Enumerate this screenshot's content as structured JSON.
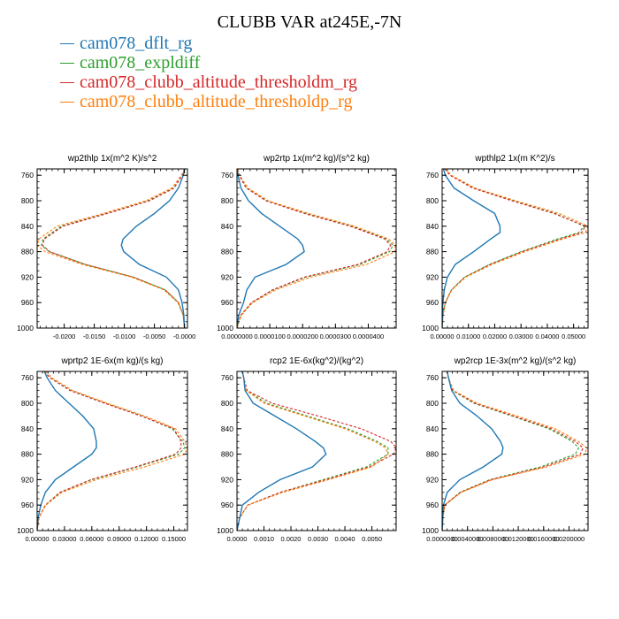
{
  "title": "CLUBB VAR at245E,-7N",
  "legend": [
    {
      "label": "cam078_dflt_rg",
      "color": "#1f77b4"
    },
    {
      "label": "cam078_expldiff",
      "color": "#2ca02c"
    },
    {
      "label": "cam078_clubb_altitude_thresholdm_rg",
      "color": "#d62728"
    },
    {
      "label": "cam078_clubb_altitude_thresholdp_rg",
      "color": "#ff7f0e"
    }
  ],
  "series_colors": [
    "#1f77b4",
    "#2ca02c",
    "#d62728",
    "#ff7f0e"
  ],
  "series_dashed": [
    false,
    true,
    true,
    true
  ],
  "chart_data": [
    {
      "type": "line",
      "title": "wp2thlp  1x(m^2 K)/s^2",
      "y": [
        750,
        760,
        780,
        800,
        820,
        840,
        860,
        870,
        880,
        900,
        920,
        940,
        960,
        980,
        1000
      ],
      "xlim": [
        -0.0245,
        0.0005
      ],
      "ylim": [
        1000,
        750
      ],
      "xticks": [
        -0.02,
        -0.015,
        -0.01,
        -0.005,
        0.0
      ],
      "xticklabels": [
        "-0.0200",
        "-0.0150",
        "-0.0100",
        "-0.0050",
        "-0.0000"
      ],
      "yticks": [
        760,
        800,
        840,
        880,
        920,
        960,
        1000
      ],
      "series": [
        {
          "name": "cam078_dflt_rg",
          "values": [
            0.0,
            -0.0002,
            -0.001,
            -0.0025,
            -0.005,
            -0.008,
            -0.0102,
            -0.0105,
            -0.0101,
            -0.0075,
            -0.003,
            -0.001,
            -0.0004,
            -0.0001,
            0.0
          ]
        },
        {
          "name": "cam078_expldiff",
          "values": [
            0.0,
            -0.0004,
            -0.0018,
            -0.006,
            -0.013,
            -0.0205,
            -0.0235,
            -0.0238,
            -0.0225,
            -0.0165,
            -0.0085,
            -0.0032,
            -0.001,
            -0.0002,
            0.0
          ]
        },
        {
          "name": "cam078_clubb_altitude_thresholdm_rg",
          "values": [
            0.0,
            -0.0004,
            -0.0017,
            -0.0058,
            -0.0128,
            -0.0202,
            -0.0233,
            -0.0236,
            -0.0224,
            -0.0165,
            -0.0085,
            -0.0032,
            -0.001,
            -0.0002,
            0.0
          ]
        },
        {
          "name": "cam078_clubb_altitude_thresholdp_rg",
          "values": [
            0.0,
            -0.0005,
            -0.0021,
            -0.0064,
            -0.0135,
            -0.0212,
            -0.0242,
            -0.0245,
            -0.0232,
            -0.017,
            -0.0088,
            -0.0034,
            -0.0011,
            -0.0002,
            0.0
          ]
        }
      ]
    },
    {
      "type": "line",
      "title": "wp2rtp  1x(m^2 kg)/(s^2 kg)",
      "y": [
        750,
        760,
        780,
        800,
        820,
        840,
        860,
        870,
        880,
        900,
        920,
        940,
        960,
        980,
        1000
      ],
      "xlim": [
        0.0,
        4.85e-05
      ],
      "ylim": [
        1000,
        750
      ],
      "xticks": [
        0.0,
        1e-05,
        2e-05,
        3e-05,
        4e-05
      ],
      "xticklabels": [
        "0.0000000",
        "0.0000100",
        "0.0000200",
        "0.0000300",
        "0.0000400"
      ],
      "yticks": [
        760,
        800,
        840,
        880,
        920,
        960,
        1000
      ],
      "series": [
        {
          "name": "cam078_dflt_rg",
          "values": [
            1e-07,
            3e-07,
            1.2e-06,
            3.5e-06,
            7.5e-06,
            1.3e-05,
            1.85e-05,
            2e-05,
            2.05e-05,
            1.5e-05,
            5.5e-06,
            3e-06,
            2e-06,
            5e-07,
            0.0
          ]
        },
        {
          "name": "cam078_expldiff",
          "values": [
            2e-07,
            6e-07,
            3e-06,
            9e-06,
            2.1e-05,
            3.5e-05,
            4.55e-05,
            4.75e-05,
            4.65e-05,
            3.75e-05,
            2.1e-05,
            1.1e-05,
            4.5e-06,
            1.2e-06,
            0.0
          ]
        },
        {
          "name": "cam078_clubb_altitude_thresholdm_rg",
          "values": [
            2e-07,
            6e-07,
            2.8e-06,
            8.8e-06,
            2.05e-05,
            3.45e-05,
            4.5e-05,
            4.68e-05,
            4.58e-05,
            3.68e-05,
            2.05e-05,
            1.08e-05,
            4.4e-06,
            1.1e-06,
            0.0
          ]
        },
        {
          "name": "cam078_clubb_altitude_thresholdp_rg",
          "values": [
            3e-07,
            8e-07,
            3.3e-06,
            9.5e-06,
            2.18e-05,
            3.58e-05,
            4.62e-05,
            4.82e-05,
            4.82e-05,
            3.95e-05,
            2.25e-05,
            1.18e-05,
            4.8e-06,
            1.3e-06,
            0.0
          ]
        }
      ]
    },
    {
      "type": "line",
      "title": "wpthlp2  1x(m K^2)/s",
      "y": [
        750,
        760,
        780,
        800,
        820,
        840,
        850,
        860,
        880,
        900,
        920,
        940,
        960,
        980,
        1000
      ],
      "xlim": [
        0.0,
        0.0555
      ],
      "ylim": [
        1000,
        750
      ],
      "xticks": [
        0.0,
        0.01,
        0.02,
        0.03,
        0.04,
        0.05
      ],
      "xticklabels": [
        "0.00000",
        "0.01000",
        "0.02000",
        "0.03000",
        "0.04000",
        "0.05000"
      ],
      "yticks": [
        760,
        800,
        840,
        880,
        920,
        960,
        1000
      ],
      "series": [
        {
          "name": "cam078_dflt_rg",
          "values": [
            0.0005,
            0.0012,
            0.0045,
            0.012,
            0.02,
            0.022,
            0.022,
            0.0185,
            0.012,
            0.005,
            0.002,
            0.0008,
            0.0003,
            0.0001,
            0.0
          ]
        },
        {
          "name": "cam078_expldiff",
          "values": [
            0.001,
            0.003,
            0.012,
            0.027,
            0.043,
            0.054,
            0.052,
            0.044,
            0.03,
            0.018,
            0.0085,
            0.0035,
            0.0012,
            0.0003,
            0.0
          ]
        },
        {
          "name": "cam078_clubb_altitude_thresholdm_rg",
          "values": [
            0.001,
            0.003,
            0.0115,
            0.0265,
            0.0425,
            0.0545,
            0.053,
            0.045,
            0.0305,
            0.0183,
            0.0087,
            0.0036,
            0.0012,
            0.0003,
            0.0
          ]
        },
        {
          "name": "cam078_clubb_altitude_thresholdp_rg",
          "values": [
            0.0012,
            0.0035,
            0.0125,
            0.028,
            0.0445,
            0.0555,
            0.0545,
            0.046,
            0.0315,
            0.019,
            0.009,
            0.0037,
            0.0013,
            0.0003,
            0.0
          ]
        }
      ]
    },
    {
      "type": "line",
      "title": "wprtp2  1E-6x(m kg)/(s kg)",
      "y": [
        750,
        760,
        780,
        800,
        820,
        840,
        860,
        870,
        880,
        900,
        920,
        940,
        960,
        980,
        1000
      ],
      "xlim": [
        0.0,
        0.165
      ],
      "ylim": [
        1000,
        750
      ],
      "xticks": [
        0.0,
        0.03,
        0.06,
        0.09,
        0.12,
        0.15
      ],
      "xticklabels": [
        "0.00000",
        "0.03000",
        "0.06000",
        "0.09000",
        "0.12000",
        "0.15000"
      ],
      "yticks": [
        760,
        800,
        840,
        880,
        920,
        960,
        1000
      ],
      "series": [
        {
          "name": "cam078_dflt_rg",
          "values": [
            0.008,
            0.011,
            0.02,
            0.035,
            0.05,
            0.062,
            0.065,
            0.065,
            0.06,
            0.04,
            0.02,
            0.009,
            0.004,
            0.001,
            0.0
          ]
        },
        {
          "name": "cam078_expldiff",
          "values": [
            0.008,
            0.014,
            0.037,
            0.075,
            0.115,
            0.148,
            0.16,
            0.162,
            0.155,
            0.11,
            0.06,
            0.025,
            0.009,
            0.002,
            0.0
          ]
        },
        {
          "name": "cam078_clubb_altitude_thresholdm_rg",
          "values": [
            0.008,
            0.014,
            0.036,
            0.074,
            0.114,
            0.15,
            0.158,
            0.158,
            0.152,
            0.108,
            0.059,
            0.025,
            0.009,
            0.002,
            0.0
          ]
        },
        {
          "name": "cam078_clubb_altitude_thresholdp_rg",
          "values": [
            0.01,
            0.016,
            0.039,
            0.077,
            0.118,
            0.152,
            0.162,
            0.165,
            0.162,
            0.118,
            0.065,
            0.027,
            0.0095,
            0.002,
            0.0
          ]
        }
      ]
    },
    {
      "type": "line",
      "title": "rcp2  1E-6x(kg^2)/(kg^2)",
      "y": [
        750,
        760,
        780,
        800,
        820,
        840,
        860,
        870,
        880,
        900,
        920,
        940,
        960,
        980,
        1000
      ],
      "xlim": [
        0.0,
        0.0059
      ],
      "ylim": [
        1000,
        750
      ],
      "xticks": [
        0.0,
        0.001,
        0.002,
        0.003,
        0.004,
        0.005
      ],
      "xticklabels": [
        "0.0000",
        "0.0010",
        "0.0020",
        "0.0030",
        "0.0040",
        "0.0050"
      ],
      "yticks": [
        760,
        800,
        840,
        880,
        920,
        960,
        1000
      ],
      "series": [
        {
          "name": "cam078_dflt_rg",
          "values": [
            0.0002,
            0.00025,
            0.0003,
            0.0006,
            0.0014,
            0.0022,
            0.0029,
            0.0032,
            0.0033,
            0.0028,
            0.0016,
            0.0008,
            0.0002,
            0.0001,
            0.0
          ]
        },
        {
          "name": "cam078_expldiff",
          "values": [
            0.0002,
            0.00025,
            0.00035,
            0.0011,
            0.0026,
            0.0041,
            0.0052,
            0.0056,
            0.0056,
            0.0048,
            0.0032,
            0.0016,
            0.0004,
            0.0001,
            0.0
          ]
        },
        {
          "name": "cam078_clubb_altitude_thresholdm_rg",
          "values": [
            0.0002,
            0.00025,
            0.00038,
            0.0013,
            0.003,
            0.0046,
            0.0057,
            0.0059,
            0.0058,
            0.0049,
            0.0033,
            0.0016,
            0.0004,
            0.0001,
            0.0
          ]
        },
        {
          "name": "cam078_clubb_altitude_thresholdp_rg",
          "values": [
            0.0002,
            0.00025,
            0.00035,
            0.001,
            0.0025,
            0.004,
            0.0051,
            0.0055,
            0.0056,
            0.005,
            0.0034,
            0.0017,
            0.0004,
            0.0001,
            0.0
          ]
        }
      ]
    },
    {
      "type": "line",
      "title": "wp2rcp  1E-3x(m^2 kg)/(s^2 kg)",
      "y": [
        750,
        760,
        780,
        800,
        820,
        840,
        860,
        870,
        880,
        900,
        920,
        940,
        960,
        980,
        1000
      ],
      "xlim": [
        0.0,
        0.023
      ],
      "ylim": [
        1000,
        750
      ],
      "xticks": [
        0.0,
        0.004,
        0.008,
        0.012,
        0.016,
        0.02
      ],
      "xticklabels": [
        "0.0000000",
        "0.0040000",
        "0.0080000",
        "0.0120000",
        "0.0160000",
        "0.0200000"
      ],
      "yticks": [
        760,
        800,
        840,
        880,
        920,
        960,
        1000
      ],
      "series": [
        {
          "name": "cam078_dflt_rg",
          "values": [
            0.0008,
            0.001,
            0.0015,
            0.0028,
            0.0055,
            0.0078,
            0.0092,
            0.0096,
            0.0094,
            0.0065,
            0.0028,
            0.0008,
            0.0002,
            0.0001,
            0.0
          ]
        },
        {
          "name": "cam078_expldiff",
          "values": [
            0.0008,
            0.001,
            0.0016,
            0.005,
            0.011,
            0.0168,
            0.0205,
            0.0215,
            0.021,
            0.0155,
            0.0075,
            0.0028,
            0.0004,
            0.0001,
            0.0
          ]
        },
        {
          "name": "cam078_clubb_altitude_thresholdm_rg",
          "values": [
            0.0008,
            0.001,
            0.0017,
            0.0052,
            0.0112,
            0.0172,
            0.021,
            0.0222,
            0.0218,
            0.016,
            0.0077,
            0.0029,
            0.0004,
            0.0001,
            0.0
          ]
        },
        {
          "name": "cam078_clubb_altitude_thresholdp_rg",
          "values": [
            0.0008,
            0.001,
            0.0018,
            0.0055,
            0.0118,
            0.0178,
            0.0215,
            0.0228,
            0.0225,
            0.0165,
            0.008,
            0.003,
            0.0004,
            0.0001,
            0.0
          ]
        }
      ]
    }
  ]
}
